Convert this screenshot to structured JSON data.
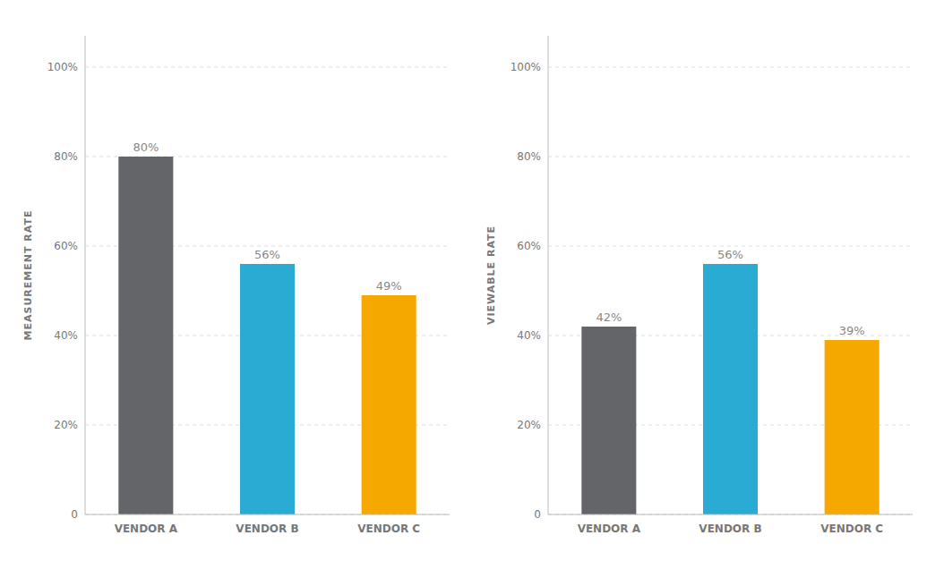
{
  "chart_data": [
    {
      "type": "bar",
      "categories": [
        "VENDOR A",
        "VENDOR B",
        "VENDOR C"
      ],
      "values": [
        80,
        56,
        49
      ],
      "value_labels": [
        "80%",
        "56%",
        "49%"
      ],
      "colors": [
        "#636569",
        "#29ABD4",
        "#F5A800"
      ],
      "ylabel": "MEASUREMENT RATE",
      "ylim": [
        0,
        107
      ],
      "yticks": [
        0,
        {
          "value": 20,
          "label": "20%"
        },
        {
          "value": 40,
          "label": "40%"
        },
        {
          "value": 60,
          "label": "60%"
        },
        {
          "value": 80,
          "label": "80%"
        },
        {
          "value": 100,
          "label": "100%"
        }
      ],
      "grid": true,
      "data_labels": true
    },
    {
      "type": "bar",
      "categories": [
        "VENDOR A",
        "VENDOR B",
        "VENDOR C"
      ],
      "values": [
        42,
        56,
        39
      ],
      "value_labels": [
        "42%",
        "56%",
        "39%"
      ],
      "colors": [
        "#636569",
        "#29ABD4",
        "#F5A800"
      ],
      "ylabel": "VIEWABLE RATE",
      "ylim": [
        0,
        107
      ],
      "yticks": [
        0,
        {
          "value": 20,
          "label": "20%"
        },
        {
          "value": 40,
          "label": "40%"
        },
        {
          "value": 60,
          "label": "60%"
        },
        {
          "value": 80,
          "label": "80%"
        },
        {
          "value": 100,
          "label": "100%"
        }
      ],
      "grid": true,
      "data_labels": true
    }
  ]
}
